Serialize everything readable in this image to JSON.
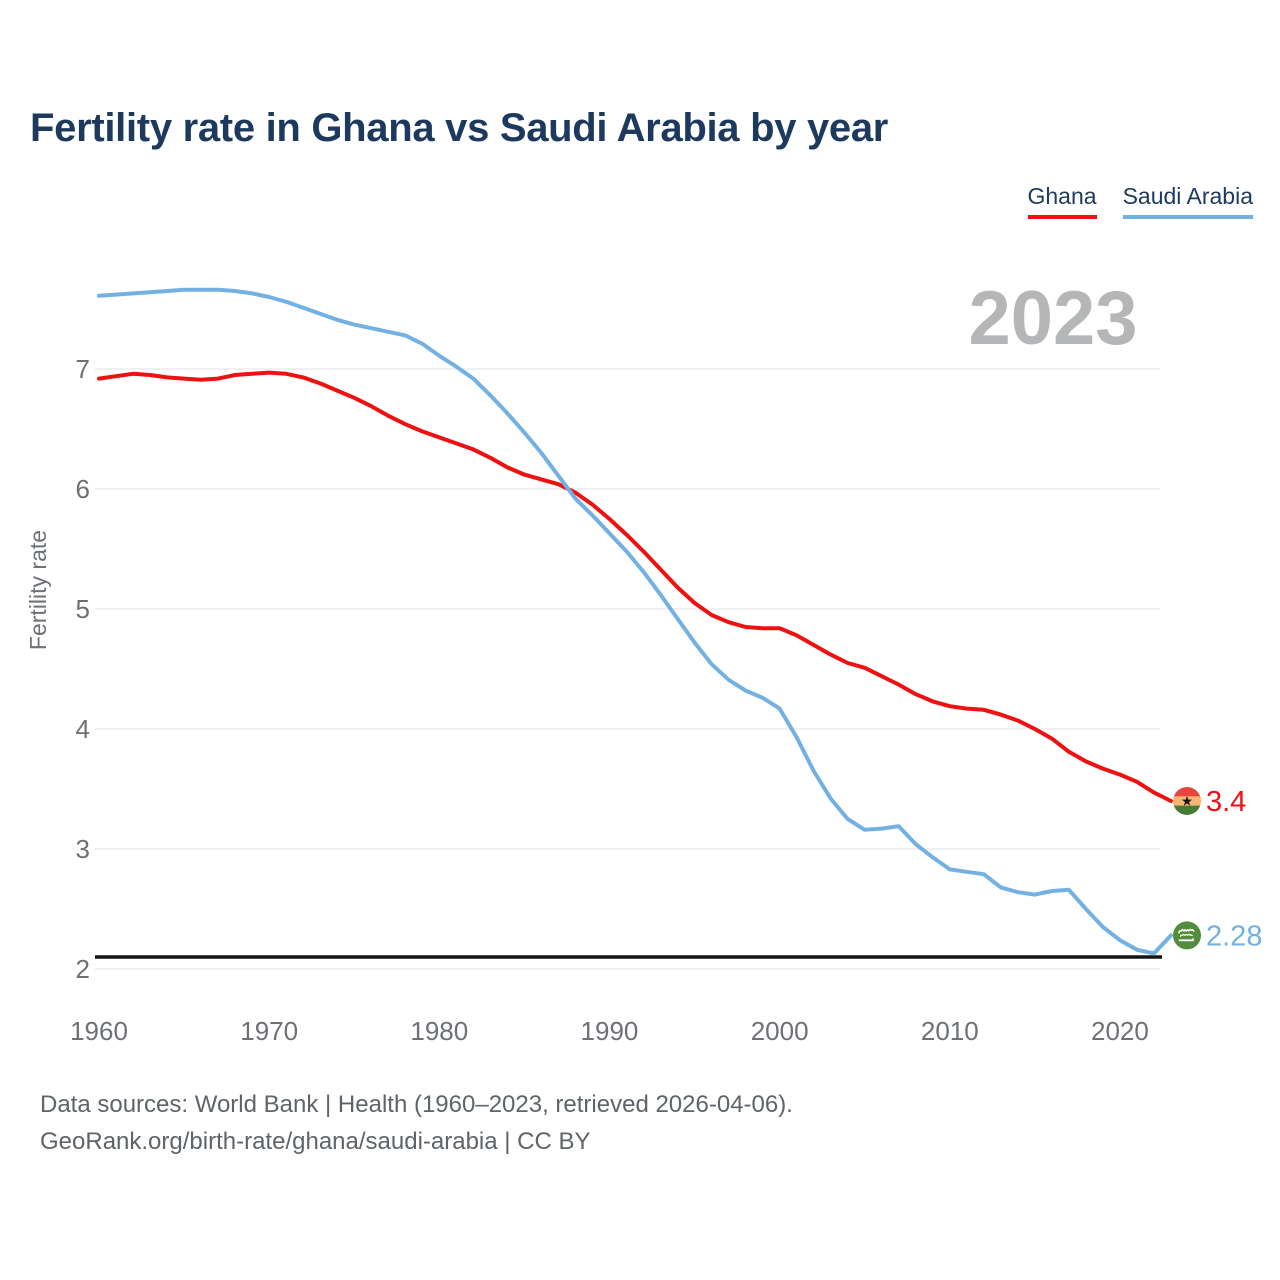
{
  "header": {
    "title": "Fertility rate in Ghana vs Saudi Arabia by year"
  },
  "legend": {
    "items": [
      {
        "label": "Ghana",
        "color": "#ee1111"
      },
      {
        "label": "Saudi Arabia",
        "color": "#73b1e3"
      }
    ]
  },
  "chart_data": {
    "type": "line",
    "title": "Fertility rate in Ghana vs Saudi Arabia by year",
    "ylabel": "Fertility rate",
    "watermark": "2023",
    "watermark_color": "#b4b6b8",
    "axis_text_color": "#6d7175",
    "grid_color": "#e8e8eb",
    "grid": "horizontal",
    "legend_position": "top-right",
    "x_ticks": [
      1960,
      1970,
      1980,
      1990,
      2000,
      2010,
      2020
    ],
    "y_ticks": [
      2,
      3,
      4,
      5,
      6,
      7
    ],
    "xlim": [
      1960,
      2023
    ],
    "ylim": [
      1.95,
      7.8
    ],
    "reference_line": {
      "value": 2.1,
      "color": "#141414"
    },
    "flags": {
      "ghana": {
        "red": "#e8453e",
        "gold": "#f6b671",
        "green": "#477b35",
        "star": "#151515"
      },
      "saudi_arabia": {
        "green": "#538c3c",
        "text": "#ffffff"
      }
    },
    "series": [
      {
        "name": "Ghana",
        "color": "#ee1111",
        "flag": "ghana",
        "end_label": "3.4",
        "x_start": 1960,
        "values": [
          6.92,
          6.94,
          6.96,
          6.95,
          6.93,
          6.92,
          6.91,
          6.92,
          6.95,
          6.96,
          6.97,
          6.96,
          6.93,
          6.88,
          6.82,
          6.76,
          6.69,
          6.61,
          6.54,
          6.48,
          6.43,
          6.38,
          6.33,
          6.26,
          6.18,
          6.12,
          6.08,
          6.04,
          5.97,
          5.87,
          5.75,
          5.62,
          5.48,
          5.33,
          5.18,
          5.05,
          4.95,
          4.89,
          4.85,
          4.84,
          4.84,
          4.78,
          4.7,
          4.62,
          4.55,
          4.51,
          4.44,
          4.37,
          4.29,
          4.23,
          4.19,
          4.17,
          4.16,
          4.12,
          4.07,
          4.0,
          3.92,
          3.81,
          3.73,
          3.67,
          3.62,
          3.56,
          3.47,
          3.4
        ]
      },
      {
        "name": "Saudi Arabia",
        "color": "#73b1e3",
        "flag": "saudi_arabia",
        "end_label": "2.28",
        "x_start": 1960,
        "values": [
          7.61,
          7.62,
          7.63,
          7.64,
          7.65,
          7.66,
          7.66,
          7.66,
          7.65,
          7.63,
          7.6,
          7.56,
          7.51,
          7.46,
          7.41,
          7.37,
          7.34,
          7.31,
          7.28,
          7.21,
          7.11,
          7.02,
          6.92,
          6.78,
          6.63,
          6.47,
          6.3,
          6.11,
          5.92,
          5.78,
          5.63,
          5.48,
          5.31,
          5.12,
          4.92,
          4.72,
          4.54,
          4.41,
          4.32,
          4.26,
          4.17,
          3.93,
          3.65,
          3.42,
          3.25,
          3.16,
          3.17,
          3.19,
          3.04,
          2.93,
          2.83,
          2.81,
          2.79,
          2.68,
          2.64,
          2.62,
          2.65,
          2.66,
          2.5,
          2.35,
          2.24,
          2.16,
          2.13,
          2.28
        ]
      }
    ]
  },
  "footer": {
    "line1": "Data sources: World Bank | Health (1960–2023, retrieved 2026-04-06).",
    "line2": "GeoRank.org/birth-rate/ghana/saudi-arabia | CC BY"
  }
}
